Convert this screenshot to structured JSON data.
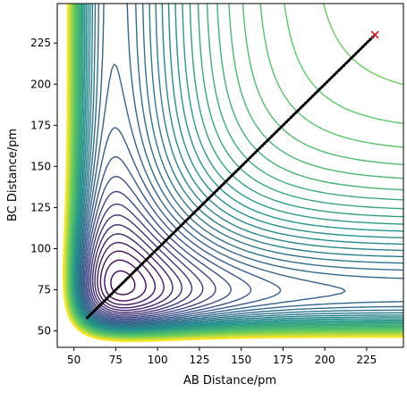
{
  "chart_data": {
    "type": "contour",
    "xlabel": "AB Distance/pm",
    "ylabel": "BC Distance/pm",
    "xlim": [
      40,
      247
    ],
    "ylim": [
      40,
      249
    ],
    "xticks": [
      50,
      75,
      100,
      125,
      150,
      175,
      200,
      225
    ],
    "yticks": [
      50,
      75,
      100,
      125,
      150,
      175,
      200,
      225
    ],
    "grid": false,
    "colormap": [
      "#440154",
      "#3b528b",
      "#21918c",
      "#5ec962",
      "#fde725"
    ],
    "surface": {
      "description_free_params": true,
      "x_min_well": 74,
      "y_min_well": 74,
      "well_depth_levels": 30
    },
    "trajectory": {
      "color": "#000000",
      "start": [
        58,
        58
      ],
      "end": [
        230,
        230
      ],
      "points": [
        [
          58,
          58
        ],
        [
          70,
          70
        ],
        [
          80,
          80
        ],
        [
          90,
          90
        ],
        [
          100,
          100
        ],
        [
          110,
          110
        ],
        [
          120,
          120
        ],
        [
          130,
          130
        ],
        [
          140,
          140
        ],
        [
          150,
          150
        ],
        [
          160,
          160
        ],
        [
          170,
          170
        ],
        [
          180,
          180
        ],
        [
          190,
          190
        ],
        [
          200,
          200
        ],
        [
          210,
          210
        ],
        [
          220,
          220
        ],
        [
          230,
          230
        ]
      ]
    },
    "marker": {
      "x": 230,
      "y": 230,
      "color": "#d62728",
      "symbol": "x"
    }
  }
}
